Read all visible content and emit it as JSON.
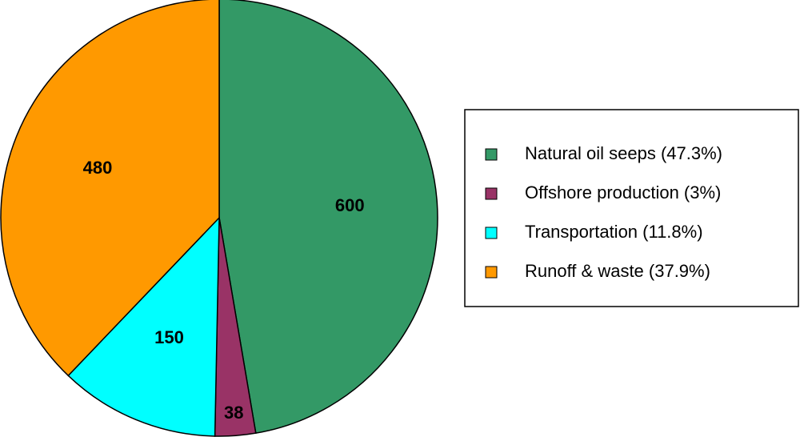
{
  "chart_data": {
    "type": "pie",
    "categories": [
      "Natural oil seeps (47.3%)",
      "Offshore production (3%)",
      "Transportation (11.8%)",
      "Runoff & waste (37.9%)"
    ],
    "values": [
      600,
      38,
      150,
      480
    ],
    "colors": [
      "#339966",
      "#993366",
      "#00ffff",
      "#ff9900"
    ]
  }
}
